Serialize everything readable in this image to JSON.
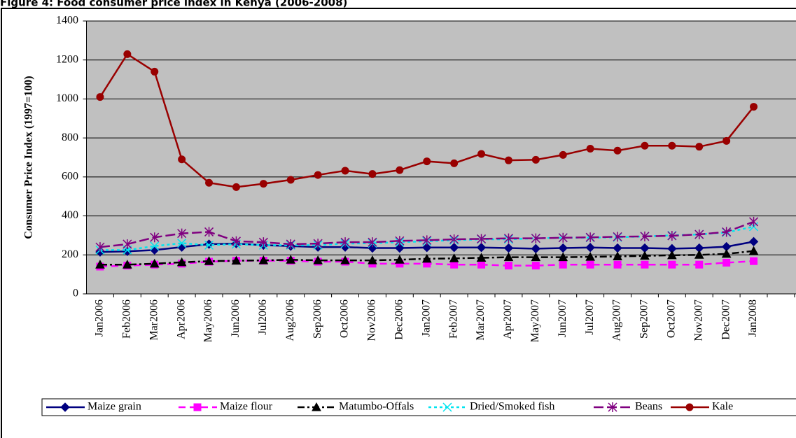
{
  "chart_data": {
    "type": "line",
    "title": "Figure 4: Food consumer price index in Kenya (2006-2008)",
    "y_label": "Consumer Price Index (1997=100)",
    "categories": [
      "Jan2006",
      "Feb2006",
      "Mar2006",
      "Apr2006",
      "May2006",
      "Jun2006",
      "Jul2006",
      "Aug2006",
      "Sep2006",
      "Oct2006",
      "Nov2006",
      "Dec2006",
      "Jan2007",
      "Feb2007",
      "Mar2007",
      "Apr2007",
      "May2007",
      "Jun2007",
      "Jul2007",
      "Aug2007",
      "Sep2007",
      "Oct2007",
      "Nov2007",
      "Dec2007",
      "Jan2008",
      null
    ],
    "ylim": [
      0,
      1400
    ],
    "yticks": [
      0,
      200,
      400,
      600,
      800,
      1000,
      1200,
      1400
    ],
    "grid": true,
    "legend": "bottom",
    "series": [
      {
        "name": "Maize grain",
        "color": "#000080",
        "marker": "diamond",
        "dash": "none",
        "values": [
          215,
          218,
          225,
          240,
          255,
          258,
          250,
          245,
          240,
          240,
          235,
          235,
          238,
          238,
          238,
          235,
          232,
          235,
          238,
          235,
          235,
          232,
          235,
          242,
          268,
          null
        ]
      },
      {
        "name": "Maize flour",
        "color": "#ff00ff",
        "marker": "square",
        "dash": "10,6",
        "values": [
          140,
          145,
          150,
          155,
          165,
          170,
          170,
          170,
          165,
          165,
          155,
          155,
          155,
          150,
          150,
          145,
          145,
          150,
          150,
          150,
          150,
          150,
          150,
          160,
          168,
          null
        ]
      },
      {
        "name": "Matumbo-Offals",
        "color": "#000000",
        "marker": "triangle",
        "dash": "10,4,3,4",
        "values": [
          150,
          150,
          155,
          162,
          168,
          170,
          172,
          175,
          172,
          172,
          172,
          175,
          180,
          182,
          185,
          188,
          188,
          188,
          190,
          192,
          195,
          198,
          200,
          205,
          220,
          null
        ]
      },
      {
        "name": "Dried/Smoked fish",
        "color": "#00e5f0",
        "marker": "x",
        "dash": "4,4",
        "values": [
          225,
          225,
          245,
          260,
          250,
          255,
          250,
          250,
          250,
          258,
          260,
          265,
          270,
          275,
          280,
          280,
          285,
          288,
          288,
          290,
          295,
          300,
          305,
          315,
          345,
          null
        ]
      },
      {
        "name": "Beans",
        "color": "#800080",
        "marker": "star",
        "dash": "14,5",
        "values": [
          240,
          255,
          290,
          310,
          318,
          270,
          265,
          255,
          258,
          265,
          265,
          272,
          275,
          280,
          282,
          285,
          285,
          288,
          290,
          293,
          295,
          298,
          305,
          318,
          370,
          null
        ]
      },
      {
        "name": "Kale",
        "color": "#990000",
        "marker": "circle",
        "dash": "none",
        "values": [
          1010,
          1230,
          1140,
          690,
          570,
          548,
          565,
          585,
          610,
          632,
          615,
          635,
          680,
          670,
          718,
          685,
          688,
          713,
          745,
          735,
          760,
          760,
          755,
          785,
          960,
          null
        ]
      }
    ]
  }
}
